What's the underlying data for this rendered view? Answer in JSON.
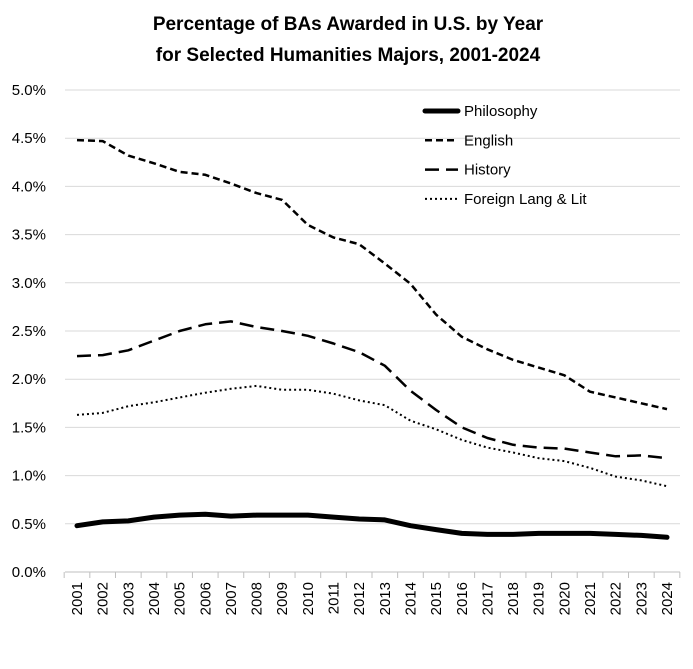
{
  "chart_data": {
    "type": "line",
    "title": [
      "Percentage of BAs Awarded in U.S. by Year",
      "for Selected Humanities Majors, 2001-2024"
    ],
    "xlabel": "",
    "ylabel": "",
    "ylim": [
      0,
      5
    ],
    "y_ticks": [
      "0.0%",
      "0.5%",
      "1.0%",
      "1.5%",
      "2.0%",
      "2.5%",
      "3.0%",
      "3.5%",
      "4.0%",
      "4.5%",
      "5.0%"
    ],
    "grid": true,
    "legend_position": "top-right",
    "categories": [
      "2001",
      "2002",
      "2003",
      "2004",
      "2005",
      "2006",
      "2007",
      "2008",
      "2009",
      "2010",
      "2011",
      "2012",
      "2013",
      "2014",
      "2015",
      "2016",
      "2017",
      "2018",
      "2019",
      "2020",
      "2021",
      "2022",
      "2023",
      "2024"
    ],
    "series": [
      {
        "name": "Philosophy",
        "style": "solid-thick",
        "color": "#000000",
        "values": [
          0.48,
          0.52,
          0.53,
          0.57,
          0.59,
          0.6,
          0.58,
          0.59,
          0.59,
          0.59,
          0.57,
          0.55,
          0.54,
          0.48,
          0.44,
          0.4,
          0.39,
          0.39,
          0.4,
          0.4,
          0.4,
          0.39,
          0.38,
          0.36
        ]
      },
      {
        "name": "English",
        "style": "dashed",
        "color": "#000000",
        "values": [
          4.48,
          4.47,
          4.32,
          4.24,
          4.15,
          4.12,
          4.03,
          3.93,
          3.86,
          3.6,
          3.47,
          3.4,
          3.2,
          2.99,
          2.67,
          2.44,
          2.31,
          2.2,
          2.12,
          2.04,
          1.87,
          1.81,
          1.75,
          1.69
        ]
      },
      {
        "name": "History",
        "style": "long-dashed",
        "color": "#000000",
        "values": [
          2.24,
          2.25,
          2.3,
          2.4,
          2.5,
          2.57,
          2.6,
          2.54,
          2.5,
          2.45,
          2.37,
          2.28,
          2.14,
          1.88,
          1.68,
          1.5,
          1.39,
          1.32,
          1.29,
          1.28,
          1.24,
          1.2,
          1.21,
          1.18
        ]
      },
      {
        "name": "Foreign Lang & Lit",
        "style": "dotted",
        "color": "#000000",
        "values": [
          1.63,
          1.65,
          1.72,
          1.76,
          1.81,
          1.86,
          1.9,
          1.93,
          1.89,
          1.89,
          1.85,
          1.78,
          1.73,
          1.57,
          1.48,
          1.37,
          1.29,
          1.24,
          1.18,
          1.15,
          1.08,
          0.99,
          0.95,
          0.89
        ]
      }
    ]
  }
}
